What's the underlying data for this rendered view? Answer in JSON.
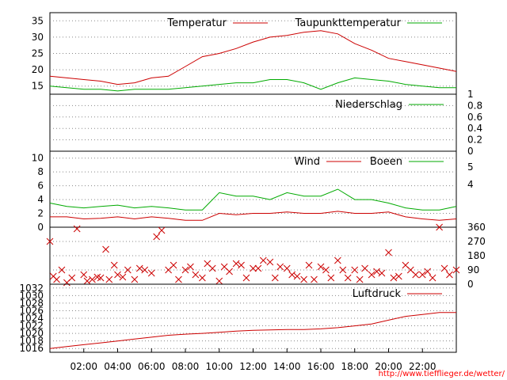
{
  "credit": "http://www.tiefflieger.de/wetter/",
  "x_ticks": [
    "02:00",
    "04:00",
    "06:00",
    "08:00",
    "10:00",
    "12:00",
    "14:00",
    "16:00",
    "18:00",
    "20:00",
    "22:00"
  ],
  "chart_data": [
    {
      "type": "line",
      "panel": "temperature",
      "x": [
        "00:00",
        "01:00",
        "02:00",
        "03:00",
        "04:00",
        "05:00",
        "06:00",
        "07:00",
        "08:00",
        "09:00",
        "10:00",
        "11:00",
        "12:00",
        "13:00",
        "14:00",
        "15:00",
        "16:00",
        "17:00",
        "18:00",
        "19:00",
        "20:00",
        "21:00",
        "22:00",
        "23:00",
        "24:00"
      ],
      "series": [
        {
          "name": "Temperatur",
          "color": "#cc0000",
          "values": [
            18,
            17.5,
            17,
            16.5,
            15.5,
            16,
            17.5,
            18,
            21,
            24,
            25,
            26.5,
            28.5,
            30,
            30.5,
            31.5,
            32,
            31,
            28,
            26,
            23.5,
            22.5,
            21.5,
            20.5,
            19.5
          ]
        },
        {
          "name": "Taupunkttemperatur",
          "color": "#00aa00",
          "values": [
            15,
            14.5,
            14,
            14,
            13.5,
            14,
            14,
            14,
            14.5,
            15,
            15.5,
            16,
            16,
            17,
            17,
            16,
            14,
            16,
            17.5,
            17,
            16.5,
            15.5,
            15,
            14.5,
            14.5
          ]
        }
      ],
      "yticks": [
        15,
        20,
        25,
        30,
        35
      ],
      "ylim": [
        12.5,
        37.5
      ]
    },
    {
      "type": "line",
      "panel": "precipitation",
      "series": [
        {
          "name": "Niederschlag",
          "color": "#00aa00",
          "values": [
            0,
            0,
            0,
            0,
            0,
            0,
            0,
            0,
            0,
            0,
            0,
            0,
            0,
            0,
            0,
            0,
            0,
            0,
            0,
            0,
            0,
            0,
            0,
            0,
            0
          ]
        }
      ],
      "yticks": [
        0,
        0.2,
        0.4,
        0.6,
        0.8,
        1
      ],
      "ylim": [
        0,
        1
      ]
    },
    {
      "type": "line",
      "panel": "wind",
      "x": [
        "00:00",
        "01:00",
        "02:00",
        "03:00",
        "04:00",
        "05:00",
        "06:00",
        "07:00",
        "08:00",
        "09:00",
        "10:00",
        "11:00",
        "12:00",
        "13:00",
        "14:00",
        "15:00",
        "16:00",
        "17:00",
        "18:00",
        "19:00",
        "20:00",
        "21:00",
        "22:00",
        "23:00",
        "24:00"
      ],
      "series": [
        {
          "name": "Wind",
          "color": "#cc0000",
          "values": [
            1.5,
            1.5,
            1.2,
            1.3,
            1.5,
            1.2,
            1.5,
            1.3,
            1.0,
            1.0,
            2.0,
            1.8,
            2.0,
            2.0,
            2.2,
            2.0,
            2.0,
            2.3,
            2.0,
            2.0,
            2.2,
            1.5,
            1.2,
            1.0,
            1.2
          ]
        },
        {
          "name": "Boeen",
          "color": "#00aa00",
          "values": [
            3.5,
            3.0,
            2.8,
            3.0,
            3.2,
            2.8,
            3.0,
            2.8,
            2.5,
            2.5,
            5.0,
            4.5,
            4.5,
            4.0,
            5.0,
            4.5,
            4.5,
            5.5,
            4.0,
            4.0,
            3.5,
            2.8,
            2.5,
            2.5,
            3.0
          ]
        }
      ],
      "yticks": [
        0,
        2,
        4,
        6,
        8,
        10
      ],
      "ylim": [
        0,
        11
      ],
      "y2ticks": [
        4,
        5
      ]
    },
    {
      "type": "scatter",
      "panel": "wind_direction",
      "series": [
        {
          "color": "#cc0000",
          "marker": "x",
          "x": [
            0,
            0.2,
            0.4,
            0.7,
            1,
            1.3,
            1.6,
            2,
            2.2,
            2.5,
            2.8,
            3,
            3.3,
            3.5,
            3.8,
            4,
            4.3,
            4.6,
            5,
            5.3,
            5.6,
            6,
            6.3,
            6.6,
            7,
            7.3,
            7.6,
            8,
            8.3,
            8.6,
            9,
            9.3,
            9.6,
            10,
            10.3,
            10.6,
            11,
            11.3,
            11.6,
            12,
            12.3,
            12.6,
            13,
            13.3,
            13.6,
            14,
            14.3,
            14.6,
            15,
            15.3,
            15.6,
            16,
            16.3,
            16.6,
            17,
            17.3,
            17.6,
            18,
            18.3,
            18.6,
            19,
            19.3,
            19.6,
            20,
            20.3,
            20.6,
            21,
            21.3,
            21.6,
            22,
            22.3,
            22.6,
            23,
            23.3,
            23.6,
            24
          ],
          "y": [
            270,
            50,
            30,
            90,
            10,
            40,
            350,
            60,
            20,
            30,
            45,
            40,
            220,
            30,
            120,
            60,
            45,
            90,
            30,
            100,
            90,
            70,
            300,
            340,
            90,
            120,
            30,
            90,
            110,
            60,
            40,
            130,
            100,
            20,
            110,
            80,
            130,
            120,
            40,
            100,
            100,
            150,
            140,
            40,
            110,
            100,
            60,
            50,
            30,
            120,
            30,
            110,
            90,
            40,
            150,
            90,
            40,
            90,
            30,
            100,
            60,
            80,
            70,
            200,
            40,
            50,
            120,
            90,
            60,
            60,
            80,
            40,
            360,
            100,
            60,
            90
          ]
        }
      ],
      "yticks": [
        0,
        90,
        180,
        270,
        360
      ],
      "ylim": [
        0,
        360
      ]
    },
    {
      "type": "line",
      "panel": "pressure",
      "x": [
        "00:00",
        "01:00",
        "02:00",
        "03:00",
        "04:00",
        "05:00",
        "06:00",
        "07:00",
        "08:00",
        "09:00",
        "10:00",
        "11:00",
        "12:00",
        "13:00",
        "14:00",
        "15:00",
        "16:00",
        "17:00",
        "18:00",
        "19:00",
        "20:00",
        "21:00",
        "22:00",
        "23:00",
        "24:00"
      ],
      "series": [
        {
          "name": "Luftdruck",
          "color": "#cc0000",
          "values": [
            1016,
            1016.5,
            1017,
            1017.5,
            1018,
            1018.5,
            1019,
            1019.5,
            1019.8,
            1020,
            1020.3,
            1020.6,
            1020.8,
            1020.9,
            1021,
            1021,
            1021.2,
            1021.5,
            1022,
            1022.5,
            1023.5,
            1024.5,
            1025,
            1025.5,
            1025.5
          ]
        }
      ],
      "yticks": [
        1016,
        1018,
        1020,
        1022,
        1024,
        1026,
        1028,
        1030,
        1032
      ],
      "ylim": [
        1015,
        1033
      ]
    }
  ]
}
